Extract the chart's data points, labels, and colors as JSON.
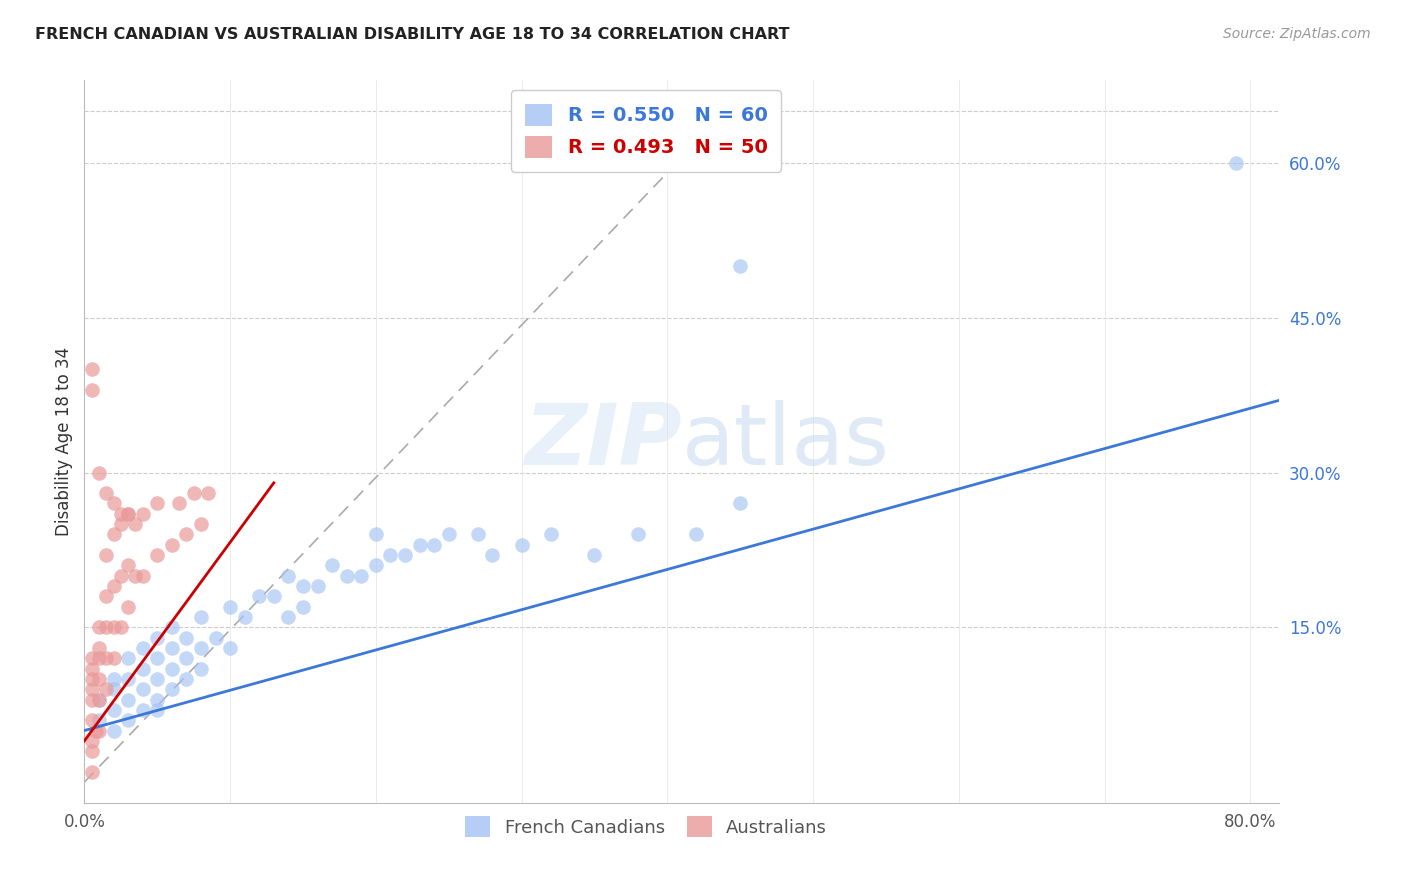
{
  "title": "FRENCH CANADIAN VS AUSTRALIAN DISABILITY AGE 18 TO 34 CORRELATION CHART",
  "source": "Source: ZipAtlas.com",
  "ylabel_label": "Disability Age 18 to 34",
  "xlim": [
    0.0,
    0.82
  ],
  "ylim": [
    -0.02,
    0.68
  ],
  "blue_R": 0.55,
  "blue_N": 60,
  "pink_R": 0.493,
  "pink_N": 50,
  "blue_color": "#a4c2f4",
  "pink_color": "#ea9999",
  "blue_line_color": "#3c78d8",
  "pink_line_color": "#cc0000",
  "legend_label_blue": "French Canadians",
  "legend_label_pink": "Australians",
  "blue_scatter_x": [
    0.01,
    0.01,
    0.02,
    0.02,
    0.02,
    0.02,
    0.03,
    0.03,
    0.03,
    0.03,
    0.04,
    0.04,
    0.04,
    0.04,
    0.05,
    0.05,
    0.05,
    0.05,
    0.05,
    0.06,
    0.06,
    0.06,
    0.06,
    0.07,
    0.07,
    0.07,
    0.08,
    0.08,
    0.08,
    0.09,
    0.1,
    0.1,
    0.11,
    0.12,
    0.13,
    0.14,
    0.14,
    0.15,
    0.15,
    0.16,
    0.17,
    0.18,
    0.19,
    0.2,
    0.2,
    0.21,
    0.22,
    0.23,
    0.24,
    0.25,
    0.27,
    0.28,
    0.3,
    0.32,
    0.35,
    0.38,
    0.42,
    0.45,
    0.79,
    0.45
  ],
  "blue_scatter_y": [
    0.06,
    0.08,
    0.05,
    0.07,
    0.09,
    0.1,
    0.06,
    0.08,
    0.1,
    0.12,
    0.07,
    0.09,
    0.11,
    0.13,
    0.07,
    0.08,
    0.1,
    0.12,
    0.14,
    0.09,
    0.11,
    0.13,
    0.15,
    0.1,
    0.12,
    0.14,
    0.11,
    0.13,
    0.16,
    0.14,
    0.13,
    0.17,
    0.16,
    0.18,
    0.18,
    0.16,
    0.2,
    0.17,
    0.19,
    0.19,
    0.21,
    0.2,
    0.2,
    0.21,
    0.24,
    0.22,
    0.22,
    0.23,
    0.23,
    0.24,
    0.24,
    0.22,
    0.23,
    0.24,
    0.22,
    0.24,
    0.24,
    0.27,
    0.6,
    0.5
  ],
  "pink_scatter_x": [
    0.005,
    0.005,
    0.005,
    0.005,
    0.005,
    0.005,
    0.005,
    0.01,
    0.01,
    0.01,
    0.01,
    0.01,
    0.01,
    0.015,
    0.015,
    0.015,
    0.015,
    0.015,
    0.02,
    0.02,
    0.02,
    0.02,
    0.025,
    0.025,
    0.025,
    0.03,
    0.03,
    0.03,
    0.035,
    0.035,
    0.04,
    0.04,
    0.05,
    0.05,
    0.06,
    0.065,
    0.07,
    0.075,
    0.08,
    0.085,
    0.01,
    0.015,
    0.02,
    0.025,
    0.03,
    0.005,
    0.005,
    0.005,
    0.005,
    0.008
  ],
  "pink_scatter_y": [
    0.04,
    0.06,
    0.08,
    0.09,
    0.1,
    0.11,
    0.12,
    0.05,
    0.08,
    0.1,
    0.12,
    0.13,
    0.15,
    0.09,
    0.12,
    0.15,
    0.18,
    0.22,
    0.12,
    0.15,
    0.19,
    0.24,
    0.15,
    0.2,
    0.25,
    0.17,
    0.21,
    0.26,
    0.2,
    0.25,
    0.2,
    0.26,
    0.22,
    0.27,
    0.23,
    0.27,
    0.24,
    0.28,
    0.25,
    0.28,
    0.3,
    0.28,
    0.27,
    0.26,
    0.26,
    0.4,
    0.38,
    0.01,
    0.03,
    0.05
  ]
}
